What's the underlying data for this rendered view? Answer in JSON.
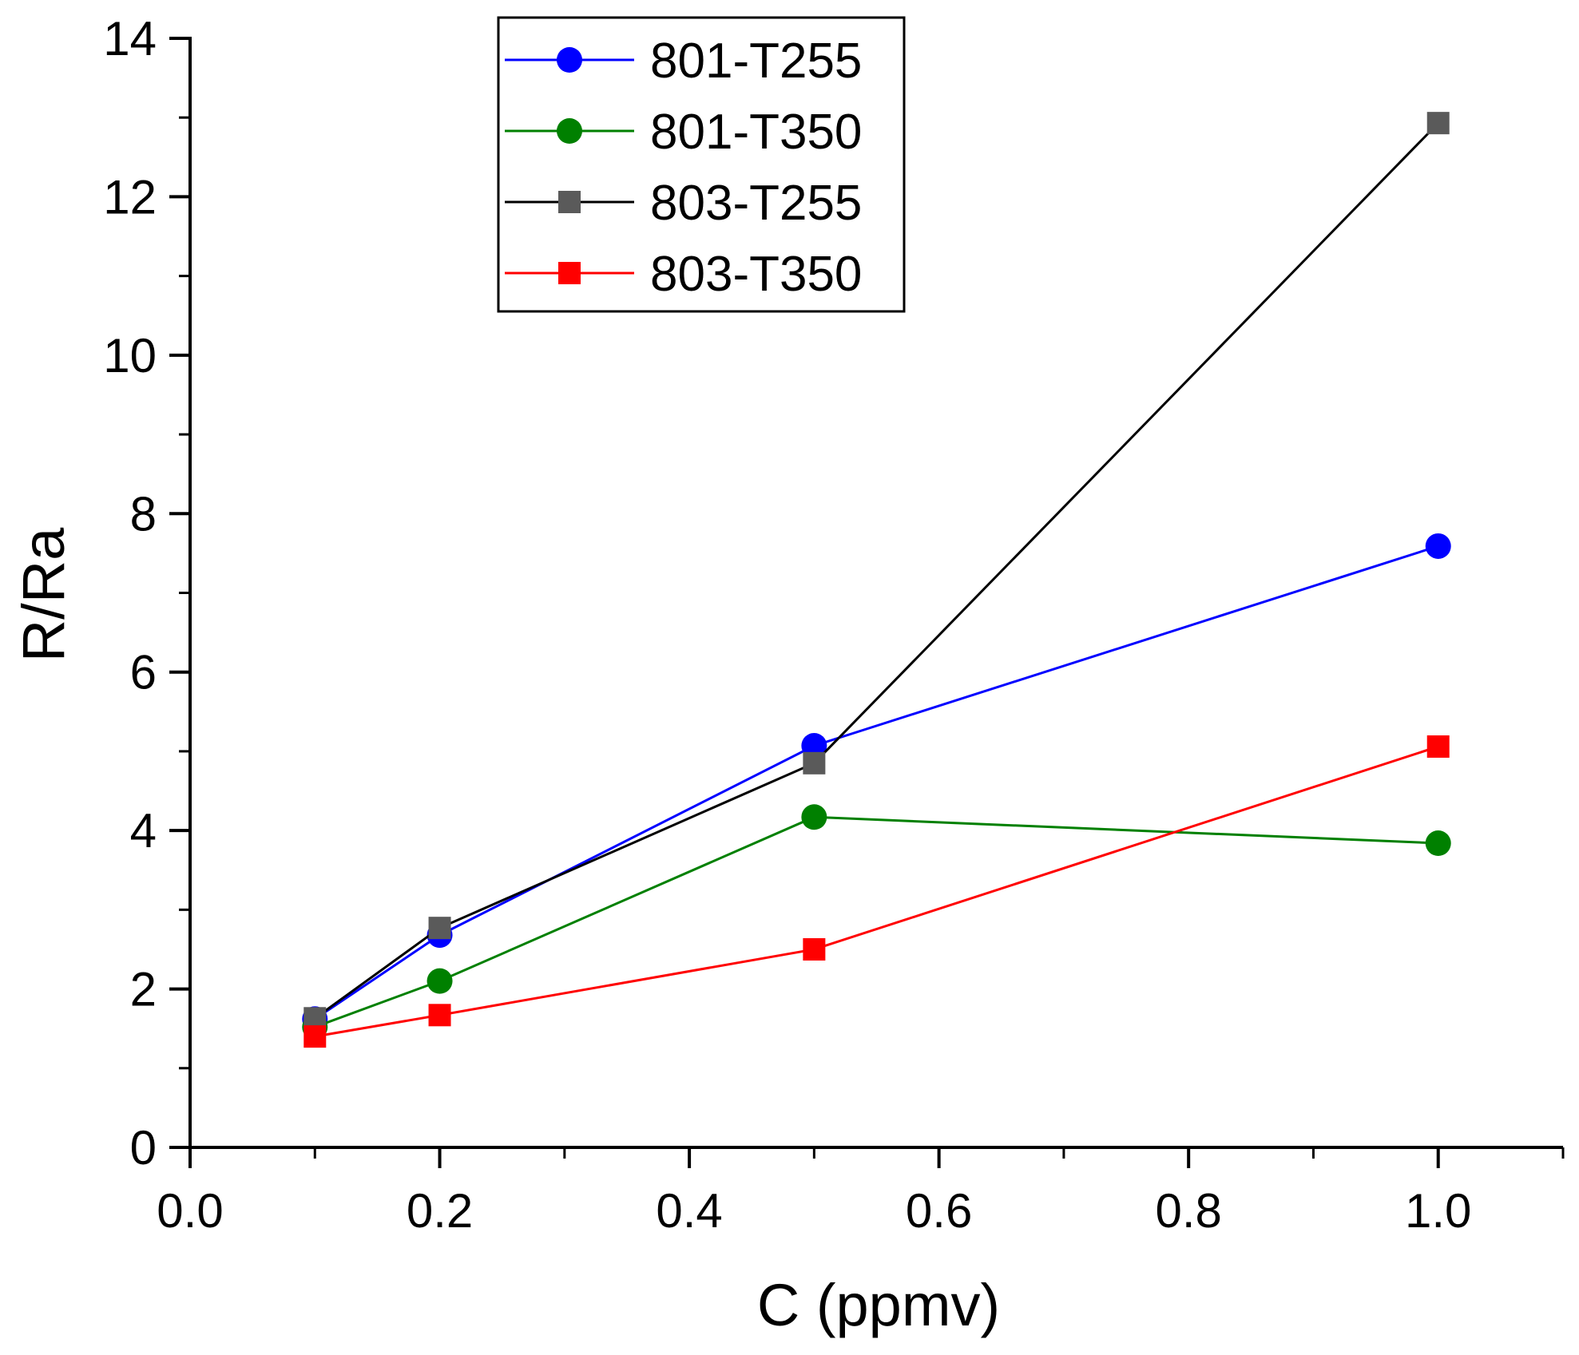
{
  "chart_data": {
    "type": "line",
    "title": "",
    "xlabel": "C (ppmv)",
    "ylabel": "R/Ra",
    "xlim": [
      0.0,
      1.1
    ],
    "ylim": [
      0,
      14
    ],
    "x_ticks": [
      0.0,
      0.2,
      0.4,
      0.6,
      0.8,
      1.0
    ],
    "x_tick_labels": [
      "0.0",
      "0.2",
      "0.4",
      "0.6",
      "0.8",
      "1.0"
    ],
    "y_ticks": [
      0,
      2,
      4,
      6,
      8,
      10,
      12,
      14
    ],
    "y_tick_labels": [
      "0",
      "2",
      "4",
      "6",
      "8",
      "10",
      "12",
      "14"
    ],
    "grid": false,
    "legend_position": "top-center",
    "x": [
      0.1,
      0.2,
      0.5,
      1.0
    ],
    "series": [
      {
        "name": "801-T255",
        "color": "#0000ff",
        "marker": "circle",
        "values": [
          1.62,
          2.68,
          5.07,
          7.59
        ]
      },
      {
        "name": "801-T350",
        "color": "#008000",
        "marker": "circle",
        "values": [
          1.52,
          2.1,
          4.17,
          3.84
        ]
      },
      {
        "name": "803-T255",
        "color": "#000000",
        "marker_color": "#5a5a5a",
        "marker": "square",
        "values": [
          1.63,
          2.77,
          4.85,
          12.93
        ]
      },
      {
        "name": "803-T350",
        "color": "#ff0000",
        "marker": "square",
        "values": [
          1.4,
          1.67,
          2.5,
          5.06
        ]
      }
    ]
  }
}
